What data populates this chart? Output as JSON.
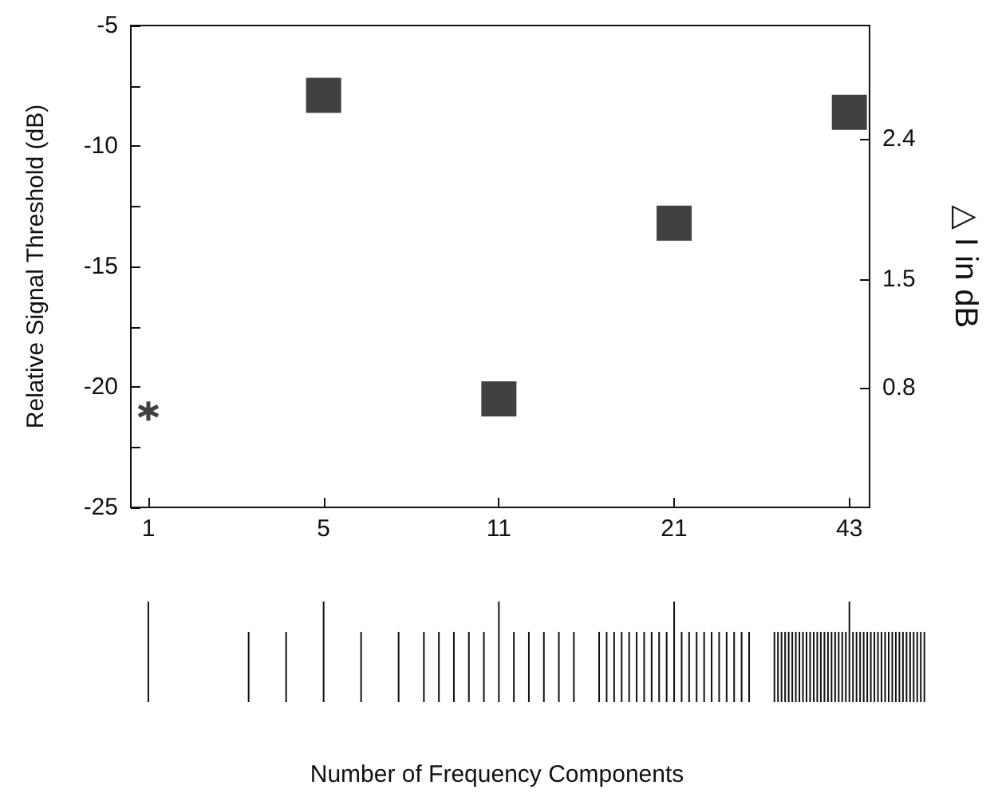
{
  "chart_data": {
    "type": "scatter",
    "ylabel": "Relative Signal Threshold (dB)",
    "y2label": "△ I in dB",
    "annotations": [
      "Number of Frequency Components"
    ],
    "categories": [
      "1",
      "5",
      "11",
      "21",
      "43"
    ],
    "ylim": [
      -25,
      -5
    ],
    "yticks": [
      -25,
      {
        "value": -22.5,
        "label": null
      },
      -20,
      {
        "value": -17.5,
        "label": null
      },
      -15,
      {
        "value": -12.5,
        "label": null
      },
      -10,
      {
        "value": -7.5,
        "label": null
      },
      -5
    ],
    "y2lim": [
      0.03,
      3.13
    ],
    "y2ticks": [
      0.8,
      1.5,
      2.4
    ],
    "grid": false,
    "series": [
      {
        "type": "scatter",
        "marker": "square",
        "color": "#111111",
        "values": [
          null,
          -7.9,
          -20.5,
          -13.2,
          -8.6
        ]
      },
      {
        "type": "scatter",
        "marker": "cross",
        "color": "#111111",
        "values": [
          -21,
          null,
          null,
          null,
          null
        ]
      }
    ]
  }
}
